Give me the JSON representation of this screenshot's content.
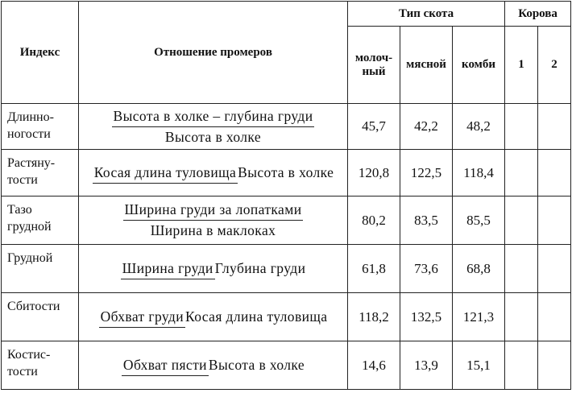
{
  "header": {
    "index": "Индекс",
    "ratio": "Отношение промеров",
    "type": "Тип скота",
    "types": [
      [
        "молоч-",
        "ный"
      ],
      [
        "мясной"
      ],
      [
        "комби"
      ]
    ],
    "cow": "Корова",
    "cows": [
      "1",
      "2"
    ]
  },
  "rows": [
    {
      "index": [
        "Длинно-",
        "ногости"
      ],
      "numerator": "Высота в холке – глубина груди",
      "denominator": "Высота в холке",
      "values": [
        "45,7",
        "42,2",
        "48,2"
      ]
    },
    {
      "index": [
        "Растяну-",
        "тости"
      ],
      "numerator": "Косая длина туловища",
      "denominator": "Высота в холке",
      "values": [
        "120,8",
        "122,5",
        "118,4"
      ]
    },
    {
      "index": [
        "Тазо",
        "грудной"
      ],
      "numerator": "Ширина груди за лопатками",
      "denominator": "Ширина в маклоках",
      "values": [
        "80,2",
        "83,5",
        "85,5"
      ]
    },
    {
      "index": [
        "Грудной"
      ],
      "numerator": "Ширина груди",
      "denominator": "Глубина груди",
      "values": [
        "61,8",
        "73,6",
        "68,8"
      ]
    },
    {
      "index": [
        "Сбитости"
      ],
      "numerator": "Обхват груди",
      "denominator": "Косая длина туловища",
      "values": [
        "118,2",
        "132,5",
        "121,3"
      ]
    },
    {
      "index": [
        "Костис-",
        "тости"
      ],
      "numerator": "Обхват пясти",
      "denominator": "Высота в холке",
      "values": [
        "14,6",
        "13,9",
        "15,1"
      ]
    }
  ]
}
